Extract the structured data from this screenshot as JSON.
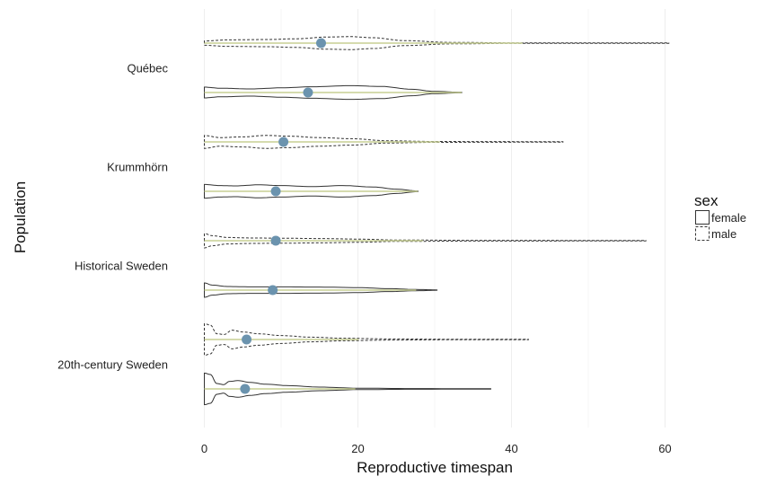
{
  "chart_data": {
    "type": "violin",
    "orientation": "horizontal",
    "xlabel": "Reproductive timespan",
    "ylabel": "Population",
    "xlim": [
      -1,
      61
    ],
    "x_ticks": [
      0,
      20,
      40,
      60
    ],
    "x_tick_labels": [
      "0",
      "20",
      "40",
      "60"
    ],
    "grid": true,
    "categories": [
      "Québec",
      "Krummhörn",
      "Historical Sweden",
      "20th-century Sweden"
    ],
    "legend": {
      "title": "sex",
      "position": "right",
      "entries": [
        {
          "label": "female",
          "line": "solid"
        },
        {
          "label": "male",
          "line": "dashed"
        }
      ]
    },
    "colors": {
      "point": "#6b93ae",
      "median_line": "#c7cf94",
      "outline": "#333333",
      "grid": "#f0f0f0"
    },
    "series": [
      {
        "category": "Québec",
        "sex": "male",
        "min": 0,
        "max": 60.5,
        "point": 15.2,
        "profile": [
          [
            0,
            0.3
          ],
          [
            3,
            0.45
          ],
          [
            8,
            0.5
          ],
          [
            12,
            0.6
          ],
          [
            16,
            0.85
          ],
          [
            19,
            0.9
          ],
          [
            22,
            0.75
          ],
          [
            26,
            0.35
          ],
          [
            32,
            0.1
          ],
          [
            40,
            0.04
          ],
          [
            60.5,
            0.03
          ]
        ]
      },
      {
        "category": "Québec",
        "sex": "female",
        "min": 0,
        "max": 33.5,
        "point": 13.5,
        "profile": [
          [
            0,
            0.75
          ],
          [
            2,
            0.6
          ],
          [
            6,
            0.5
          ],
          [
            10,
            0.65
          ],
          [
            14,
            0.8
          ],
          [
            19,
            0.95
          ],
          [
            23,
            0.85
          ],
          [
            27,
            0.45
          ],
          [
            30,
            0.15
          ],
          [
            33.5,
            0.05
          ]
        ]
      },
      {
        "category": "Krummhörn",
        "sex": "male",
        "min": 0,
        "max": 46.7,
        "point": 10.3,
        "profile": [
          [
            0,
            0.9
          ],
          [
            2,
            0.6
          ],
          [
            5,
            0.7
          ],
          [
            8,
            0.9
          ],
          [
            11,
            0.8
          ],
          [
            15,
            0.6
          ],
          [
            19,
            0.45
          ],
          [
            24,
            0.15
          ],
          [
            30,
            0.06
          ],
          [
            46.7,
            0.03
          ]
        ]
      },
      {
        "category": "Krummhörn",
        "sex": "female",
        "min": 0,
        "max": 27.8,
        "point": 9.3,
        "profile": [
          [
            0,
            0.95
          ],
          [
            2,
            0.8
          ],
          [
            4,
            0.75
          ],
          [
            7,
            0.9
          ],
          [
            10,
            0.8
          ],
          [
            14,
            0.65
          ],
          [
            18,
            0.8
          ],
          [
            22,
            0.6
          ],
          [
            25,
            0.3
          ],
          [
            27.8,
            0.05
          ]
        ]
      },
      {
        "category": "Historical Sweden",
        "sex": "male",
        "min": 0,
        "max": 57.5,
        "point": 9.3,
        "profile": [
          [
            0,
            1.0
          ],
          [
            1,
            0.7
          ],
          [
            3,
            0.45
          ],
          [
            6,
            0.38
          ],
          [
            10,
            0.35
          ],
          [
            15,
            0.3
          ],
          [
            20,
            0.22
          ],
          [
            25,
            0.1
          ],
          [
            35,
            0.05
          ],
          [
            57.5,
            0.03
          ]
        ]
      },
      {
        "category": "Historical Sweden",
        "sex": "female",
        "min": 0,
        "max": 30.3,
        "point": 8.9,
        "profile": [
          [
            0,
            1.0
          ],
          [
            1,
            0.7
          ],
          [
            3,
            0.5
          ],
          [
            6,
            0.45
          ],
          [
            10,
            0.45
          ],
          [
            15,
            0.42
          ],
          [
            20,
            0.35
          ],
          [
            24,
            0.2
          ],
          [
            28,
            0.08
          ],
          [
            30.3,
            0.03
          ]
        ]
      },
      {
        "category": "20th-century Sweden",
        "sex": "male",
        "min": 0,
        "max": 42.2,
        "point": 5.5,
        "profile": [
          [
            0,
            2.2
          ],
          [
            0.8,
            2.0
          ],
          [
            1.6,
            0.8
          ],
          [
            2.6,
            0.7
          ],
          [
            3.6,
            1.3
          ],
          [
            5,
            1.05
          ],
          [
            7,
            0.8
          ],
          [
            10,
            0.55
          ],
          [
            14,
            0.32
          ],
          [
            18,
            0.18
          ],
          [
            24,
            0.08
          ],
          [
            32,
            0.04
          ],
          [
            42.2,
            0.02
          ]
        ]
      },
      {
        "category": "20th-century Sweden",
        "sex": "female",
        "min": 0,
        "max": 37.3,
        "point": 5.3,
        "profile": [
          [
            0,
            2.2
          ],
          [
            0.8,
            2.0
          ],
          [
            1.6,
            0.75
          ],
          [
            2.5,
            0.6
          ],
          [
            3.3,
            1.05
          ],
          [
            4.4,
            1.15
          ],
          [
            6,
            0.9
          ],
          [
            8,
            0.65
          ],
          [
            11,
            0.45
          ],
          [
            15,
            0.25
          ],
          [
            20,
            0.1
          ],
          [
            27,
            0.05
          ],
          [
            37.3,
            0.02
          ]
        ]
      }
    ]
  }
}
